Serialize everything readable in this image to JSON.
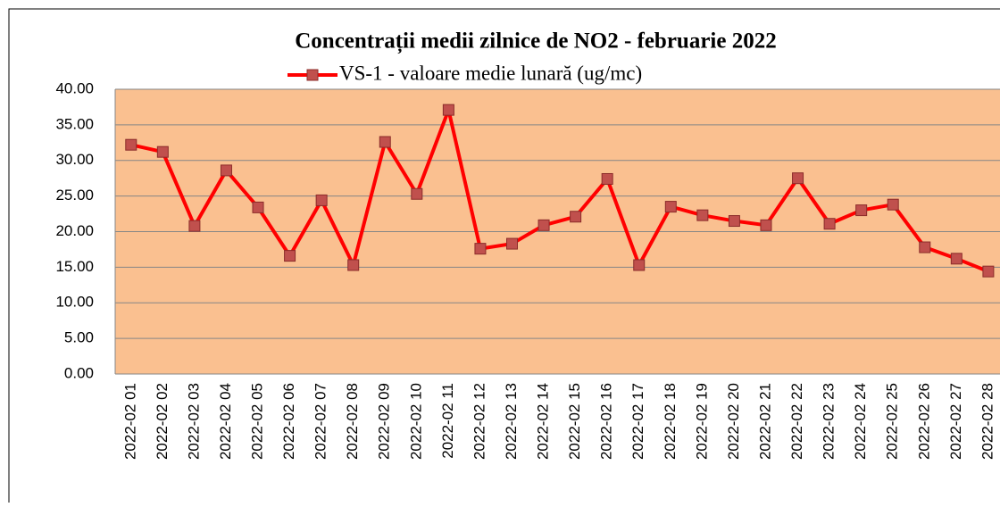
{
  "chart_data": {
    "type": "line",
    "title": "Concentrații medii zilnice de NO2 - februarie 2022",
    "categories": [
      "2022-02 01",
      "2022-02 02",
      "2022-02 03",
      "2022-02 04",
      "2022-02 05",
      "2022-02 06",
      "2022-02 07",
      "2022-02 08",
      "2022-02 09",
      "2022-02 10",
      "2022-02 11",
      "2022-02 12",
      "2022-02 13",
      "2022-02 14",
      "2022-02 15",
      "2022-02 16",
      "2022-02 17",
      "2022-02 18",
      "2022-02 19",
      "2022-02 20",
      "2022-02 21",
      "2022-02 22",
      "2022-02 23",
      "2022-02 24",
      "2022-02 25",
      "2022-02 26",
      "2022-02 27",
      "2022-02 28"
    ],
    "series": [
      {
        "name": "VS-1 - valoare medie lunară (ug/mc)",
        "color": "#ff0000",
        "marker_color": "#c0504d",
        "values": [
          32.2,
          31.2,
          20.8,
          28.6,
          23.4,
          16.6,
          24.4,
          15.3,
          32.6,
          25.3,
          37.1,
          17.6,
          18.3,
          20.9,
          22.1,
          27.4,
          15.3,
          23.5,
          22.3,
          21.5,
          20.9,
          27.5,
          21.1,
          23.0,
          23.8,
          17.8,
          16.2,
          14.4
        ]
      }
    ],
    "ylim": [
      0,
      40
    ],
    "yticks": [
      {
        "value": 0,
        "label": "0.00"
      },
      {
        "value": 5,
        "label": "5.00"
      },
      {
        "value": 10,
        "label": "10.00"
      },
      {
        "value": 15,
        "label": "15.00"
      },
      {
        "value": 20,
        "label": "20.00"
      },
      {
        "value": 25,
        "label": "25.00"
      },
      {
        "value": 30,
        "label": "30.00"
      },
      {
        "value": 35,
        "label": "35.00"
      },
      {
        "value": 40,
        "label": "40.00"
      }
    ],
    "grid": true,
    "plot_background": "#fac090",
    "legend": "top"
  }
}
